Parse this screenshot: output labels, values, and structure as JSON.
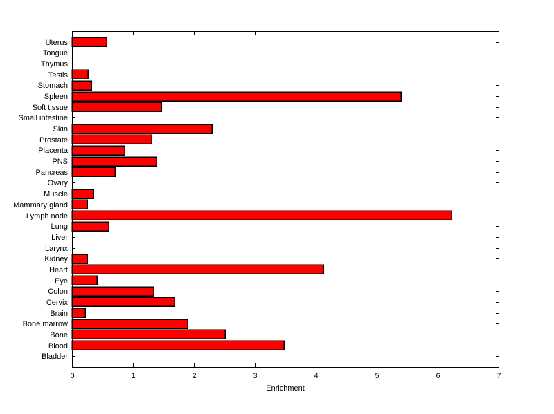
{
  "figure": {
    "background": "#ffffff",
    "axes_color": "#000000"
  },
  "chart_data": {
    "type": "bar",
    "orientation": "horizontal",
    "title": "",
    "xlabel": "Enrichment",
    "ylabel": "",
    "xlim": [
      0,
      7
    ],
    "xticks": [
      "0",
      "1",
      "2",
      "3",
      "4",
      "5",
      "6",
      "7"
    ],
    "grid": false,
    "legend": null,
    "bar_color": "#ff0000",
    "bar_edge_color": "#000000",
    "categories": [
      "Uterus",
      "Tongue",
      "Thymus",
      "Testis",
      "Stomach",
      "Spleen",
      "Soft tissue",
      "Small intestine",
      "Skin",
      "Prostate",
      "Placenta",
      "PNS",
      "Pancreas",
      "Ovary",
      "Muscle",
      "Mammary gland",
      "Lymph node",
      "Lung",
      "Liver",
      "Larynx",
      "Kidney",
      "Heart",
      "Eye",
      "Colon",
      "Cervix",
      "Brain",
      "Bone marrow",
      "Bone",
      "Blood",
      "Bladder"
    ],
    "values": [
      0.57,
      0,
      0,
      0.26,
      0.32,
      5.4,
      1.47,
      0,
      2.3,
      1.31,
      0.86,
      1.39,
      0.7,
      0,
      0.35,
      0.25,
      6.23,
      0.6,
      0,
      0,
      0.25,
      4.12,
      0.41,
      1.34,
      1.68,
      0.22,
      1.9,
      2.51,
      3.48,
      0
    ]
  }
}
